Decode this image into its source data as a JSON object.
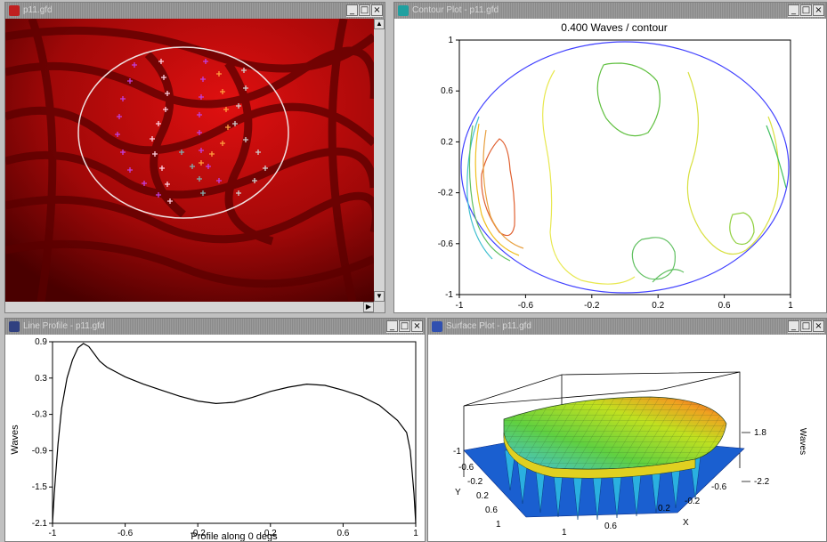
{
  "windows": {
    "image": {
      "title": "p11.gfd"
    },
    "contour": {
      "title": "Contour Plot - p11.gfd"
    },
    "line": {
      "title": "Line Profile - p11.gfd"
    },
    "surface": {
      "title": "Surface Plot - p11.gfd"
    }
  },
  "window_buttons": {
    "minimize": "_",
    "maximize": "□",
    "close": "×"
  },
  "contour_plot": {
    "title": "0.400 Waves / contour",
    "x_ticks": [
      "-1",
      "-0.6",
      "-0.2",
      "0.2",
      "0.6",
      "1"
    ],
    "y_ticks": [
      "1",
      "0.6",
      "0.2",
      "-0.2",
      "-0.6",
      "-1"
    ],
    "colors": {
      "aperture": "#4040ff",
      "levels": [
        "#e06030",
        "#f0c020",
        "#e8e850",
        "#90d040",
        "#40c060",
        "#40c0d0"
      ]
    }
  },
  "chart_data": {
    "type": "line",
    "xlabel": "Profile along 0 degs",
    "ylabel": "Waves",
    "xlim": [
      -1,
      1
    ],
    "ylim": [
      -2.1,
      0.9
    ],
    "x_ticks": [
      "-1",
      "-0.6",
      "-0.2",
      "0.2",
      "0.6",
      "1"
    ],
    "y_ticks": [
      "0.9",
      "0.3",
      "-0.3",
      "-0.9",
      "-1.5",
      "-2.1"
    ],
    "x": [
      -1.0,
      -0.99,
      -0.97,
      -0.95,
      -0.92,
      -0.89,
      -0.86,
      -0.83,
      -0.8,
      -0.77,
      -0.74,
      -0.7,
      -0.65,
      -0.6,
      -0.5,
      -0.4,
      -0.3,
      -0.2,
      -0.1,
      0.0,
      0.1,
      0.2,
      0.3,
      0.4,
      0.5,
      0.6,
      0.7,
      0.8,
      0.9,
      0.95,
      0.97,
      0.99,
      1.0
    ],
    "y": [
      -2.1,
      -1.6,
      -0.8,
      -0.2,
      0.3,
      0.6,
      0.8,
      0.87,
      0.82,
      0.7,
      0.58,
      0.48,
      0.4,
      0.32,
      0.2,
      0.1,
      0.0,
      -0.08,
      -0.12,
      -0.1,
      -0.02,
      0.08,
      0.15,
      0.2,
      0.18,
      0.1,
      0.0,
      -0.15,
      -0.4,
      -0.6,
      -0.9,
      -1.6,
      -2.1
    ]
  },
  "surface_plot": {
    "z_label": "Waves",
    "z_ticks": [
      "1.8",
      "-2.2"
    ],
    "x_label": "X",
    "y_label": "Y",
    "x_ticks": [
      "-0.6",
      "-0.2",
      "0.2",
      "0.6",
      "1"
    ],
    "y_ticks": [
      "-1",
      "-0.6",
      "-0.2",
      "0.2",
      "0.6",
      "1"
    ],
    "base_color": "#1a5fd0"
  }
}
